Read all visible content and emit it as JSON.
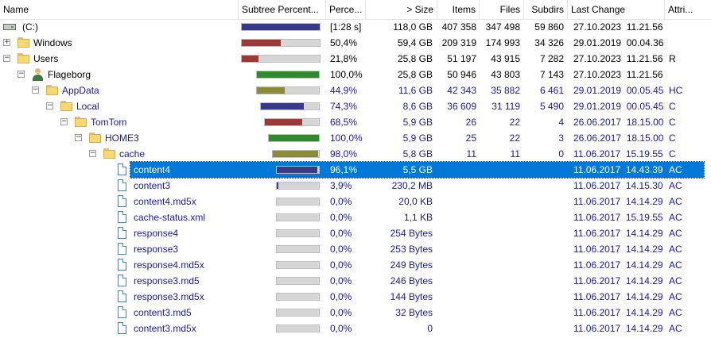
{
  "header": {
    "name": "Name",
    "subtree_percent": "Subtree Percent...",
    "percent": "Perce...",
    "size": "> Size",
    "items": "Items",
    "files": "Files",
    "subdirs": "Subdirs",
    "last_change": "Last Change",
    "attributes": "Attri..."
  },
  "colors": {
    "selection": "#0078d7",
    "link_text": "#1a1aa6",
    "bar_blue": "#3a3a8c",
    "bar_red": "#9c3a3a",
    "bar_green": "#2f8a2f",
    "bar_olive": "#8a8a3a"
  },
  "rows": [
    {
      "name": "(C:)",
      "icon": "drive-icon",
      "depth": 0,
      "expander": "",
      "percent": "[1:28 s]",
      "size": "118,0 GB",
      "items": "407 358",
      "files": "347 498",
      "subdirs": "59 860",
      "last_change": "27.10.2023  11.21.56",
      "attr": "",
      "fill": 1.0,
      "bar_color": "#3a3a8c",
      "blue": false,
      "selected": false
    },
    {
      "name": "Windows",
      "icon": "folder-icon",
      "depth": 0,
      "expander": "+",
      "percent": "50,4%",
      "size": "59,4 GB",
      "items": "209 319",
      "files": "174 993",
      "subdirs": "34 326",
      "last_change": "29.01.2019  00.04.36",
      "attr": "",
      "fill": 0.504,
      "bar_color": "#9c3a3a",
      "blue": false,
      "selected": false
    },
    {
      "name": "Users",
      "icon": "folder-icon",
      "depth": 0,
      "expander": "−",
      "percent": "21,8%",
      "size": "25,8 GB",
      "items": "51 197",
      "files": "43 915",
      "subdirs": "7 282",
      "last_change": "27.10.2023  11.21.56",
      "attr": "R",
      "fill": 0.218,
      "bar_color": "#9c3a3a",
      "blue": false,
      "selected": false
    },
    {
      "name": "Flageborg",
      "icon": "user-icon",
      "depth": 1,
      "expander": "−",
      "percent": "100,0%",
      "size": "25,8 GB",
      "items": "50 946",
      "files": "43 803",
      "subdirs": "7 143",
      "last_change": "27.10.2023  11.21.56",
      "attr": "",
      "fill": 1.0,
      "bar_color": "#2f8a2f",
      "blue": false,
      "selected": false
    },
    {
      "name": "AppData",
      "icon": "folder-icon",
      "depth": 2,
      "expander": "−",
      "percent": "44,9%",
      "size": "11,6 GB",
      "items": "42 343",
      "files": "35 882",
      "subdirs": "6 461",
      "last_change": "29.01.2019  00.05.45",
      "attr": "HC",
      "fill": 0.449,
      "bar_color": "#8a8a3a",
      "blue": true,
      "selected": false
    },
    {
      "name": "Local",
      "icon": "folder-icon",
      "depth": 3,
      "expander": "−",
      "percent": "74,3%",
      "size": "8,6 GB",
      "items": "36 609",
      "files": "31 119",
      "subdirs": "5 490",
      "last_change": "29.01.2019  00.05.45",
      "attr": "C",
      "fill": 0.743,
      "bar_color": "#3a3a8c",
      "blue": true,
      "selected": false
    },
    {
      "name": "TomTom",
      "icon": "folder-icon",
      "depth": 4,
      "expander": "−",
      "percent": "68,5%",
      "size": "5,9 GB",
      "items": "26",
      "files": "22",
      "subdirs": "4",
      "last_change": "26.06.2017  18.15.00",
      "attr": "C",
      "fill": 0.685,
      "bar_color": "#9c3a3a",
      "blue": true,
      "selected": false
    },
    {
      "name": "HOME3",
      "icon": "folder-icon",
      "depth": 5,
      "expander": "−",
      "percent": "100,0%",
      "size": "5,9 GB",
      "items": "25",
      "files": "22",
      "subdirs": "3",
      "last_change": "26.06.2017  18.15.00",
      "attr": "C",
      "fill": 1.0,
      "bar_color": "#2f8a2f",
      "blue": true,
      "selected": false
    },
    {
      "name": "cache",
      "icon": "folder-icon",
      "depth": 6,
      "expander": "−",
      "percent": "98,0%",
      "size": "5,8 GB",
      "items": "11",
      "files": "11",
      "subdirs": "0",
      "last_change": "11.06.2017  15.19.55",
      "attr": "C",
      "fill": 0.98,
      "bar_color": "#8a8a3a",
      "blue": true,
      "selected": false
    },
    {
      "name": "content4",
      "icon": "file-icon",
      "depth": 7,
      "expander": "",
      "percent": "96,1%",
      "size": "5,5 GB",
      "items": "",
      "files": "",
      "subdirs": "",
      "last_change": "11.06.2017  14.43.39",
      "attr": "AC",
      "fill": 0.961,
      "bar_color": "#3a3a8c",
      "blue": true,
      "selected": true
    },
    {
      "name": "content3",
      "icon": "file-icon",
      "depth": 7,
      "expander": "",
      "percent": "3,9%",
      "size": "230,2 MB",
      "items": "",
      "files": "",
      "subdirs": "",
      "last_change": "11.06.2017  14.15.30",
      "attr": "AC",
      "fill": 0.039,
      "bar_color": "#3a3a8c",
      "blue": true,
      "selected": false
    },
    {
      "name": "content4.md5x",
      "icon": "file-icon",
      "depth": 7,
      "expander": "",
      "percent": "0,0%",
      "size": "20,0 KB",
      "items": "",
      "files": "",
      "subdirs": "",
      "last_change": "11.06.2017  14.14.29",
      "attr": "AC",
      "fill": 0,
      "bar_color": "#3a3a8c",
      "blue": true,
      "selected": false
    },
    {
      "name": "cache-status.xml",
      "icon": "file-icon",
      "depth": 7,
      "expander": "",
      "percent": "0,0%",
      "size": "1,1 KB",
      "items": "",
      "files": "",
      "subdirs": "",
      "last_change": "11.06.2017  15.19.55",
      "attr": "AC",
      "fill": 0,
      "bar_color": "#3a3a8c",
      "blue": true,
      "selected": false
    },
    {
      "name": "response4",
      "icon": "file-icon",
      "depth": 7,
      "expander": "",
      "percent": "0,0%",
      "size": "254 Bytes",
      "items": "",
      "files": "",
      "subdirs": "",
      "last_change": "11.06.2017  14.14.29",
      "attr": "AC",
      "fill": 0,
      "bar_color": "#3a3a8c",
      "blue": true,
      "selected": false
    },
    {
      "name": "response3",
      "icon": "file-icon",
      "depth": 7,
      "expander": "",
      "percent": "0,0%",
      "size": "253 Bytes",
      "items": "",
      "files": "",
      "subdirs": "",
      "last_change": "11.06.2017  14.14.29",
      "attr": "AC",
      "fill": 0,
      "bar_color": "#3a3a8c",
      "blue": true,
      "selected": false
    },
    {
      "name": "response4.md5x",
      "icon": "file-icon",
      "depth": 7,
      "expander": "",
      "percent": "0,0%",
      "size": "249 Bytes",
      "items": "",
      "files": "",
      "subdirs": "",
      "last_change": "11.06.2017  14.14.29",
      "attr": "AC",
      "fill": 0,
      "bar_color": "#3a3a8c",
      "blue": true,
      "selected": false
    },
    {
      "name": "response3.md5",
      "icon": "file-icon",
      "depth": 7,
      "expander": "",
      "percent": "0,0%",
      "size": "246 Bytes",
      "items": "",
      "files": "",
      "subdirs": "",
      "last_change": "11.06.2017  14.14.29",
      "attr": "AC",
      "fill": 0,
      "bar_color": "#3a3a8c",
      "blue": true,
      "selected": false
    },
    {
      "name": "response3.md5x",
      "icon": "file-icon",
      "depth": 7,
      "expander": "",
      "percent": "0,0%",
      "size": "144 Bytes",
      "items": "",
      "files": "",
      "subdirs": "",
      "last_change": "11.06.2017  14.14.29",
      "attr": "AC",
      "fill": 0,
      "bar_color": "#3a3a8c",
      "blue": true,
      "selected": false
    },
    {
      "name": "content3.md5",
      "icon": "file-icon",
      "depth": 7,
      "expander": "",
      "percent": "0,0%",
      "size": "32 Bytes",
      "items": "",
      "files": "",
      "subdirs": "",
      "last_change": "11.06.2017  14.14.29",
      "attr": "AC",
      "fill": 0,
      "bar_color": "#3a3a8c",
      "blue": true,
      "selected": false
    },
    {
      "name": "content3.md5x",
      "icon": "file-icon",
      "depth": 7,
      "expander": "",
      "percent": "0,0%",
      "size": "0",
      "items": "",
      "files": "",
      "subdirs": "",
      "last_change": "11.06.2017  14.14.29",
      "attr": "AC",
      "fill": 0,
      "bar_color": "#3a3a8c",
      "blue": true,
      "selected": false
    }
  ]
}
